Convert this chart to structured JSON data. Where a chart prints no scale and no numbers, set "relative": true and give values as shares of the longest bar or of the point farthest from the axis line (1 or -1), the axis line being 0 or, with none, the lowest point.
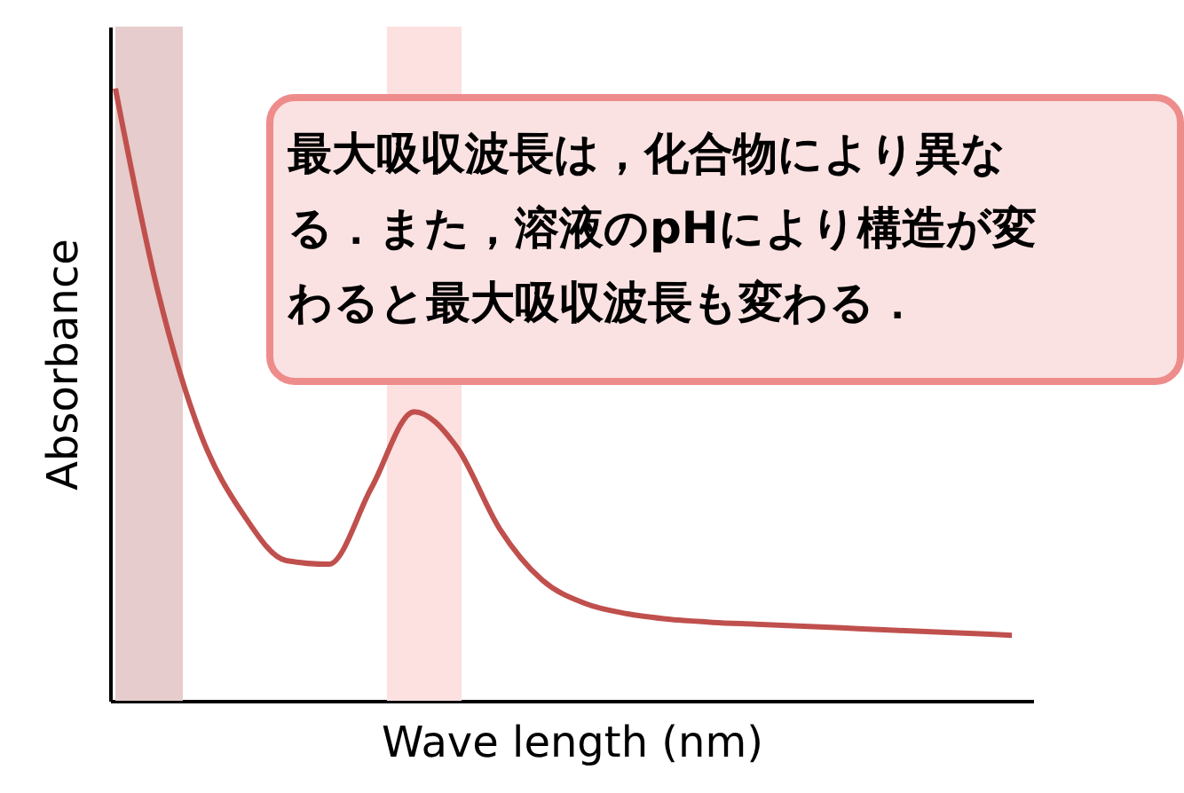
{
  "chart_data": {
    "type": "line",
    "relative": true,
    "xlabel": "Wave length (nm)",
    "ylabel": "Absorbance",
    "categories": [
      null,
      null,
      null,
      null,
      null,
      null,
      null,
      null,
      null,
      null,
      null,
      null,
      null,
      null,
      null,
      null,
      null,
      null,
      null,
      null,
      null,
      null
    ],
    "series": [
      {
        "color": "#c0504d",
        "values": [
          1.0,
          0.667,
          0.435,
          0.304,
          0.229,
          0.223,
          0.348,
          0.472,
          0.414,
          0.281,
          0.197,
          0.159,
          0.142,
          0.133,
          0.128,
          0.125,
          0.122,
          0.119,
          0.116,
          0.113,
          0.11,
          0.107
        ]
      }
    ],
    "annotations": [
      "最大吸収波長は，化合物により異なる．また，溶液のpHにより構造が変わると最大吸収波長も変わる．"
    ],
    "grid": false,
    "marker": "none",
    "line_style": "solid"
  }
}
